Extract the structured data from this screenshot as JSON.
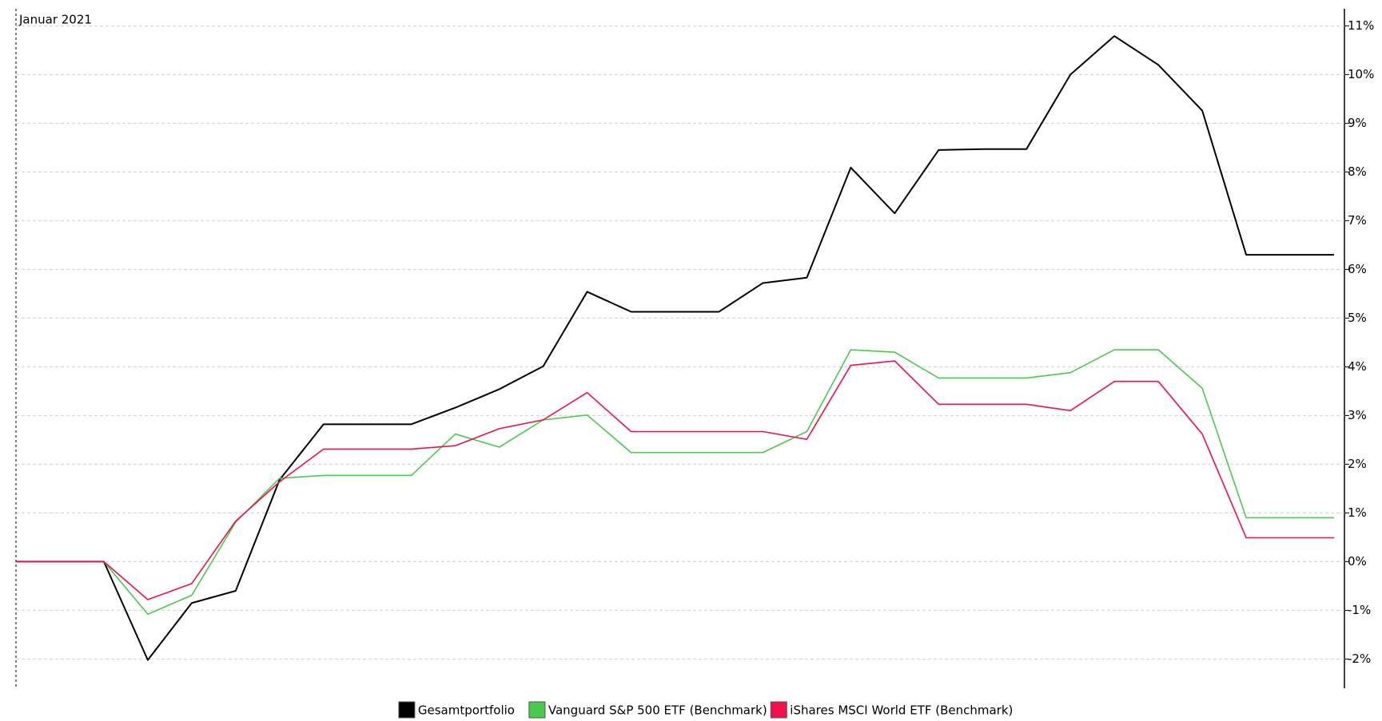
{
  "chart_data": {
    "type": "line",
    "period_label": "Januar 2021",
    "categories": [
      null,
      null,
      null,
      null,
      null,
      null,
      null,
      null,
      null,
      null,
      null,
      null,
      null,
      null,
      null,
      null,
      null,
      null,
      null,
      null,
      null,
      null,
      null,
      null,
      null,
      null,
      null,
      null,
      null,
      null,
      null
    ],
    "series": [
      {
        "name": "Gesamtportfolio",
        "color": "#000000",
        "values": [
          0,
          0,
          0,
          -2.02,
          -0.85,
          -0.6,
          1.68,
          2.82,
          2.82,
          2.82,
          3.16,
          3.54,
          4.01,
          5.54,
          5.13,
          5.13,
          5.13,
          5.72,
          5.83,
          8.09,
          7.15,
          8.45,
          8.47,
          8.47,
          10.0,
          10.79,
          10.2,
          9.26,
          6.3,
          6.3,
          6.3
        ]
      },
      {
        "name": "Vanguard S&P 500 ETF (Benchmark)",
        "color": "#4cc94c",
        "values": [
          0,
          0,
          0,
          -1.08,
          -0.69,
          0.81,
          1.71,
          1.77,
          1.77,
          1.77,
          2.62,
          2.35,
          2.91,
          3.01,
          2.24,
          2.24,
          2.24,
          2.24,
          2.67,
          4.35,
          4.3,
          3.77,
          3.77,
          3.77,
          3.88,
          4.35,
          4.35,
          3.56,
          0.9,
          0.9,
          0.9
        ]
      },
      {
        "name": "iShares MSCI World ETF (Benchmark)",
        "color": "#f0104a",
        "values": [
          0,
          0,
          0,
          -0.78,
          -0.45,
          0.83,
          1.64,
          2.31,
          2.31,
          2.31,
          2.38,
          2.73,
          2.91,
          3.47,
          2.67,
          2.67,
          2.67,
          2.67,
          2.51,
          4.03,
          4.12,
          3.23,
          3.23,
          3.23,
          3.1,
          3.7,
          3.7,
          2.62,
          0.49,
          0.49,
          0.49
        ]
      }
    ],
    "ylim": [
      -2.6,
      11.35
    ],
    "yticks": [
      {
        "value": -2,
        "label": "-2%"
      },
      {
        "value": -1,
        "label": "-1%"
      },
      {
        "value": 0,
        "label": "0%"
      },
      {
        "value": 1,
        "label": "1%"
      },
      {
        "value": 2,
        "label": "2%"
      },
      {
        "value": 3,
        "label": "3%"
      },
      {
        "value": 4,
        "label": "4%"
      },
      {
        "value": 5,
        "label": "5%"
      },
      {
        "value": 6,
        "label": "6%"
      },
      {
        "value": 7,
        "label": "7%"
      },
      {
        "value": 8,
        "label": "8%"
      },
      {
        "value": 9,
        "label": "9%"
      },
      {
        "value": 10,
        "label": "10%"
      },
      {
        "value": 11,
        "label": "11%"
      }
    ],
    "grid": true,
    "y_axis_side": "right",
    "legend_position": "bottom"
  }
}
